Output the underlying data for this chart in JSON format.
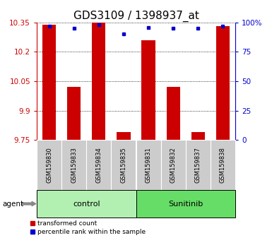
{
  "title": "GDS3109 / 1398937_at",
  "samples": [
    "GSM159830",
    "GSM159833",
    "GSM159834",
    "GSM159835",
    "GSM159831",
    "GSM159832",
    "GSM159837",
    "GSM159838"
  ],
  "groups": [
    "control",
    "control",
    "control",
    "control",
    "Sunitinib",
    "Sunitinib",
    "Sunitinib",
    "Sunitinib"
  ],
  "red_values": [
    10.34,
    10.02,
    10.35,
    9.79,
    10.26,
    10.02,
    9.79,
    10.33
  ],
  "blue_values": [
    97,
    95,
    98,
    90,
    96,
    95,
    95,
    97
  ],
  "ylim_left": [
    9.75,
    10.35
  ],
  "ylim_right": [
    0,
    100
  ],
  "yticks_left": [
    9.75,
    9.9,
    10.05,
    10.2,
    10.35
  ],
  "yticks_right": [
    0,
    25,
    50,
    75,
    100
  ],
  "ytick_labels_left": [
    "9.75",
    "9.9",
    "10.05",
    "10.2",
    "10.35"
  ],
  "ytick_labels_right": [
    "0",
    "25",
    "50",
    "75",
    "100%"
  ],
  "group_colors": {
    "control": "#b2f0b2",
    "Sunitinib": "#66dd66"
  },
  "bar_color": "#cc0000",
  "dot_color": "#0000cc",
  "sample_box_color": "#cccccc",
  "title_fontsize": 11,
  "background_color": "#ffffff",
  "left_axis_color": "#cc0000",
  "right_axis_color": "#0000cc",
  "agent_arrow_color": "#888888"
}
